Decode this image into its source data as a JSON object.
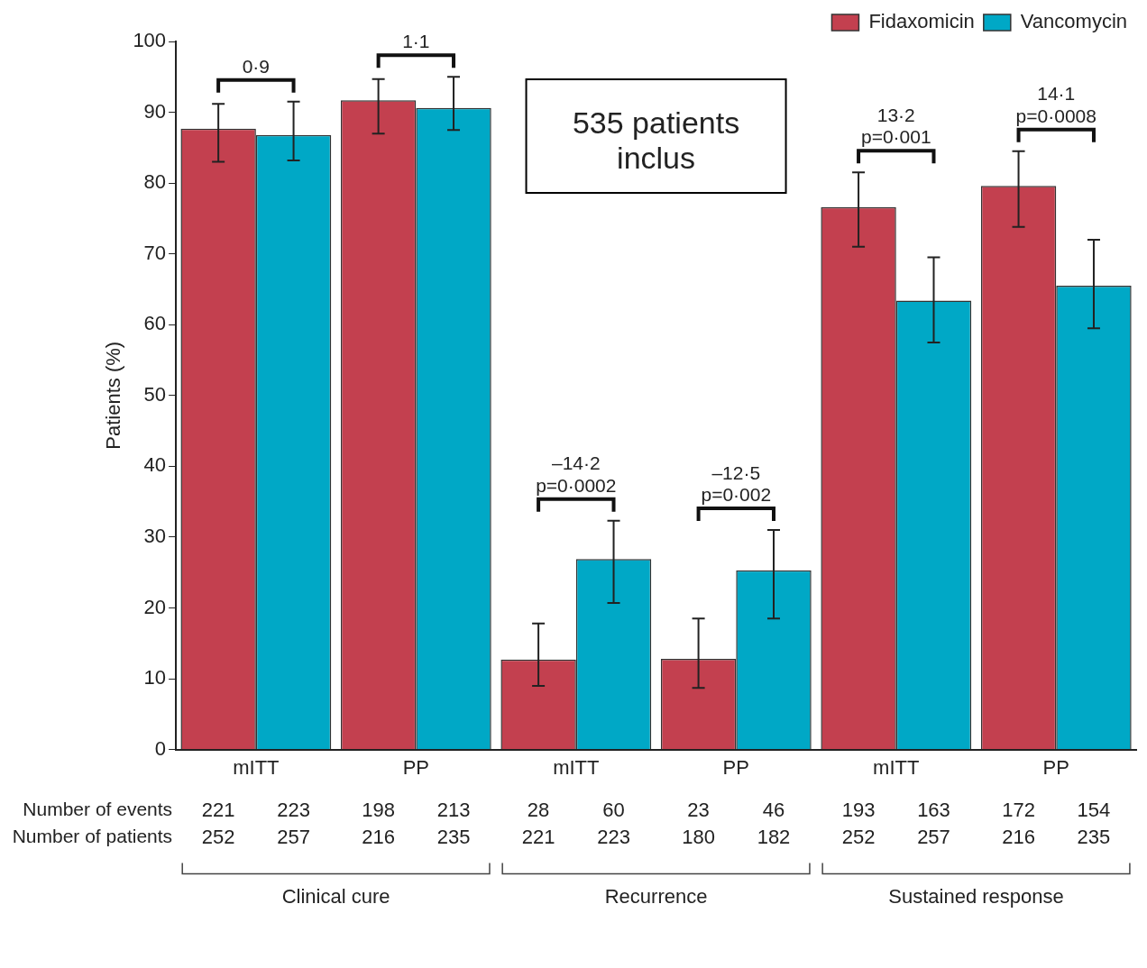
{
  "chart_data": {
    "type": "bar",
    "ylabel": "Patients (%)",
    "categories": [
      "mITT",
      "PP",
      "mITT",
      "PP",
      "mITT",
      "PP"
    ],
    "series": [
      {
        "name": "Fidaxomicin",
        "color": "#c3404f",
        "values": [
          87.7,
          91.7,
          12.7,
          12.8,
          76.6,
          79.6
        ],
        "errors": [
          [
            83,
            91.2
          ],
          [
            87,
            94.7
          ],
          [
            9,
            17.8
          ],
          [
            8.7,
            18.5
          ],
          [
            71,
            81.5
          ],
          [
            73.8,
            84.5
          ]
        ]
      },
      {
        "name": "Vancomycin",
        "color": "#00a8c6",
        "values": [
          86.8,
          90.6,
          26.9,
          25.3,
          63.4,
          65.5
        ],
        "errors": [
          [
            83.2,
            91.5
          ],
          [
            87.5,
            95
          ],
          [
            20.7,
            32.3
          ],
          [
            18.5,
            31
          ],
          [
            57.5,
            69.5
          ],
          [
            59.5,
            72
          ]
        ]
      }
    ],
    "ylim": [
      0,
      100
    ],
    "yticks": [
      0,
      10,
      20,
      30,
      40,
      50,
      60,
      70,
      80,
      90,
      100
    ],
    "grid": false,
    "legend": "top right",
    "annotations": [
      "535 patients\ninclus",
      "0·9",
      "1·1",
      "–14·2\np=0·0002",
      "–12·5\np=0·002",
      "13·2\np=0·001",
      "14·1\np=0·0008",
      "Number of events",
      "Number of patients",
      "221",
      "223",
      "198",
      "213",
      "28",
      "60",
      "23",
      "46",
      "193",
      "163",
      "172",
      "154",
      "252",
      "257",
      "216",
      "235",
      "221",
      "223",
      "180",
      "182",
      "252",
      "257",
      "216",
      "235",
      "Clinical cure",
      "Recurrence",
      "Sustained response"
    ]
  }
}
